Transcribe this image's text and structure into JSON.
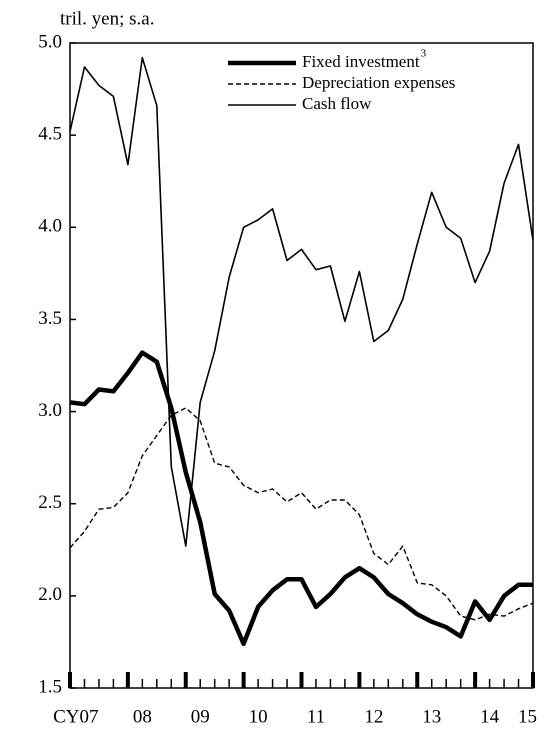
{
  "chart_data": {
    "type": "line",
    "y_axis_label": "tril. yen; s.a.",
    "categories": [
      null,
      "CY07",
      null,
      null,
      null,
      "08",
      null,
      null,
      null,
      "09",
      null,
      null,
      null,
      "10",
      null,
      null,
      null,
      "11",
      null,
      null,
      null,
      "12",
      null,
      null,
      null,
      "13",
      null,
      null,
      null,
      "14",
      null,
      null,
      "15"
    ],
    "series": [
      {
        "name": "Fixed investment",
        "footnote_marker": "3",
        "color": "#000",
        "width": 4.5,
        "dash": "none",
        "values": [
          3.05,
          3.04,
          3.12,
          3.11,
          3.21,
          3.32,
          3.27,
          3.02,
          2.67,
          2.4,
          2.01,
          1.92,
          1.74,
          1.94,
          2.03,
          2.09,
          2.09,
          1.94,
          2.01,
          2.1,
          2.15,
          2.1,
          2.01,
          1.96,
          1.9,
          1.86,
          1.83,
          1.78,
          1.97,
          1.87,
          2.0,
          2.06,
          2.06
        ]
      },
      {
        "name": "Depreciation expenses",
        "color": "#000",
        "width": 1.4,
        "dash": "5,3",
        "values": [
          2.26,
          2.35,
          2.47,
          2.48,
          2.56,
          2.76,
          2.87,
          2.98,
          3.02,
          2.95,
          2.72,
          2.7,
          2.6,
          2.56,
          2.58,
          2.51,
          2.56,
          2.47,
          2.52,
          2.52,
          2.44,
          2.23,
          2.17,
          2.27,
          2.07,
          2.06,
          2.0,
          1.89,
          1.87,
          1.9,
          1.89,
          1.93,
          1.96
        ]
      },
      {
        "name": "Cash flow",
        "color": "#000",
        "width": 1.6,
        "dash": "none",
        "values": [
          4.52,
          4.87,
          4.77,
          4.71,
          4.34,
          4.92,
          4.66,
          2.7,
          2.27,
          3.05,
          3.33,
          3.73,
          4.0,
          4.04,
          4.1,
          3.82,
          3.88,
          3.77,
          3.79,
          3.49,
          3.76,
          3.38,
          3.44,
          3.61,
          3.91,
          4.19,
          4.0,
          3.94,
          3.7,
          3.87,
          4.24,
          4.45,
          3.93
        ]
      }
    ],
    "ylim": [
      1.5,
      5.0
    ],
    "yticks": [
      1.5,
      {
        "value": 2.0,
        "label": "2.0"
      },
      2.5,
      {
        "value": 3.0,
        "label": "3.0"
      },
      3.5,
      {
        "value": 4.0,
        "label": "4.0"
      },
      4.5,
      {
        "value": 5.0,
        "label": "5.0"
      }
    ],
    "legend": "upper right",
    "grid": false
  }
}
